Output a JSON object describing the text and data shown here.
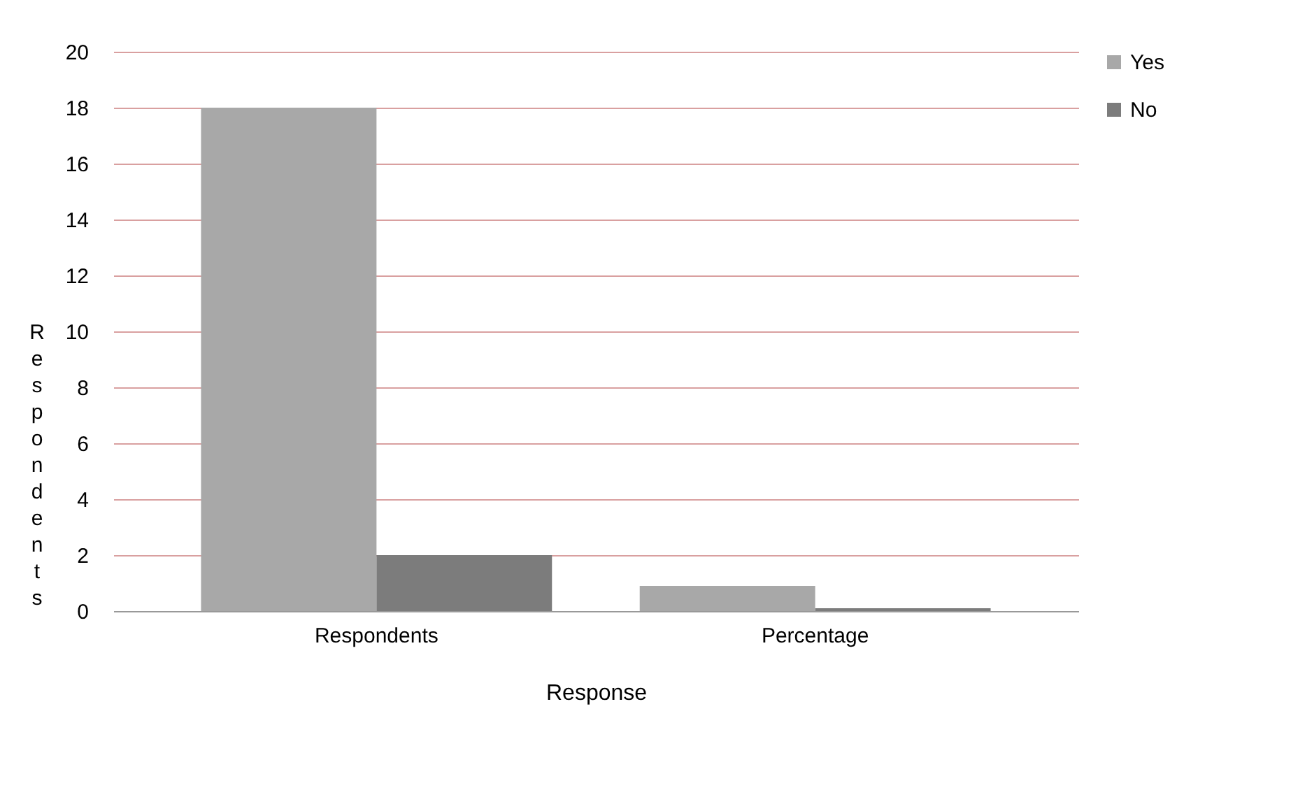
{
  "chart_data": {
    "type": "bar",
    "xlabel": "Response",
    "ylabel": "Respondents",
    "categories": [
      "Respondents",
      "Percentage"
    ],
    "series": [
      {
        "name": "Yes",
        "color": "#a8a8a8",
        "values": [
          18,
          0.9
        ]
      },
      {
        "name": "No",
        "color": "#7c7c7c",
        "values": [
          2,
          0.1
        ]
      }
    ],
    "ylim": [
      0,
      20
    ],
    "yticks": [
      0,
      2,
      4,
      6,
      8,
      10,
      12,
      14,
      16,
      18,
      20
    ],
    "grid": "y",
    "legend": "right"
  }
}
